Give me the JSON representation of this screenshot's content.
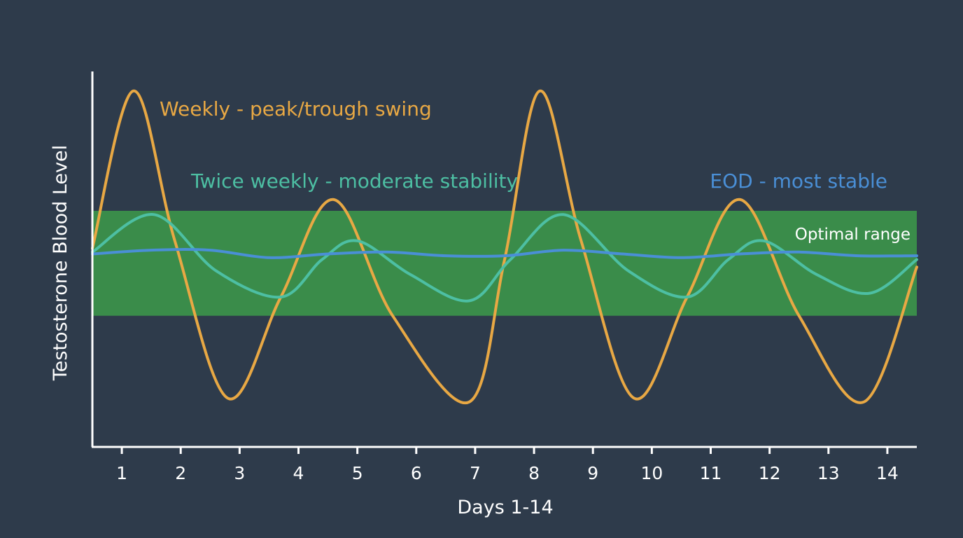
{
  "chart_data": {
    "type": "line",
    "xlabel": "Days 1-14",
    "ylabel": "Testosterone Blood Level",
    "x_ticks": [
      1,
      2,
      3,
      4,
      5,
      6,
      7,
      8,
      9,
      10,
      11,
      12,
      13,
      14
    ],
    "xlim": [
      0.5,
      14.5
    ],
    "ylim": [
      0,
      100
    ],
    "grid": false,
    "band": {
      "label": "Optimal range",
      "from": 35,
      "to": 63,
      "color": "#3a8c4a"
    },
    "series": [
      {
        "name": "Weekly - peak/trough swing",
        "color": "#e8a844",
        "points": [
          [
            0.5,
            53
          ],
          [
            1.2,
            95
          ],
          [
            1.9,
            55
          ],
          [
            2.8,
            13
          ],
          [
            3.7,
            40
          ],
          [
            4.6,
            66
          ],
          [
            5.6,
            35
          ],
          [
            6.9,
            12
          ],
          [
            7.5,
            50
          ],
          [
            8.1,
            95
          ],
          [
            8.8,
            55
          ],
          [
            9.7,
            13
          ],
          [
            10.6,
            40
          ],
          [
            11.5,
            66
          ],
          [
            12.5,
            35
          ],
          [
            13.6,
            12
          ],
          [
            14.5,
            48
          ]
        ]
      },
      {
        "name": "Twice weekly - moderate stability",
        "color": "#4dbfa3",
        "points": [
          [
            0.5,
            52
          ],
          [
            1.55,
            62
          ],
          [
            2.6,
            47
          ],
          [
            3.7,
            40
          ],
          [
            4.4,
            50
          ],
          [
            5.0,
            55
          ],
          [
            5.9,
            46
          ],
          [
            6.9,
            39
          ],
          [
            7.6,
            50
          ],
          [
            8.5,
            62
          ],
          [
            9.6,
            47
          ],
          [
            10.6,
            40
          ],
          [
            11.3,
            50
          ],
          [
            11.9,
            55
          ],
          [
            12.8,
            46
          ],
          [
            13.7,
            41
          ],
          [
            14.5,
            50
          ]
        ]
      },
      {
        "name": "EOD - most stable",
        "color": "#4a8fd6",
        "points": [
          [
            0.5,
            51.5
          ],
          [
            1.5,
            52.5
          ],
          [
            2.5,
            52.5
          ],
          [
            3.5,
            50.5
          ],
          [
            4.5,
            51.5
          ],
          [
            5.5,
            52
          ],
          [
            6.5,
            51
          ],
          [
            7.5,
            51
          ],
          [
            8.5,
            52.5
          ],
          [
            9.5,
            51.5
          ],
          [
            10.5,
            50.5
          ],
          [
            11.5,
            51.5
          ],
          [
            12.5,
            52
          ],
          [
            13.5,
            51
          ],
          [
            14.5,
            51
          ]
        ]
      }
    ]
  }
}
